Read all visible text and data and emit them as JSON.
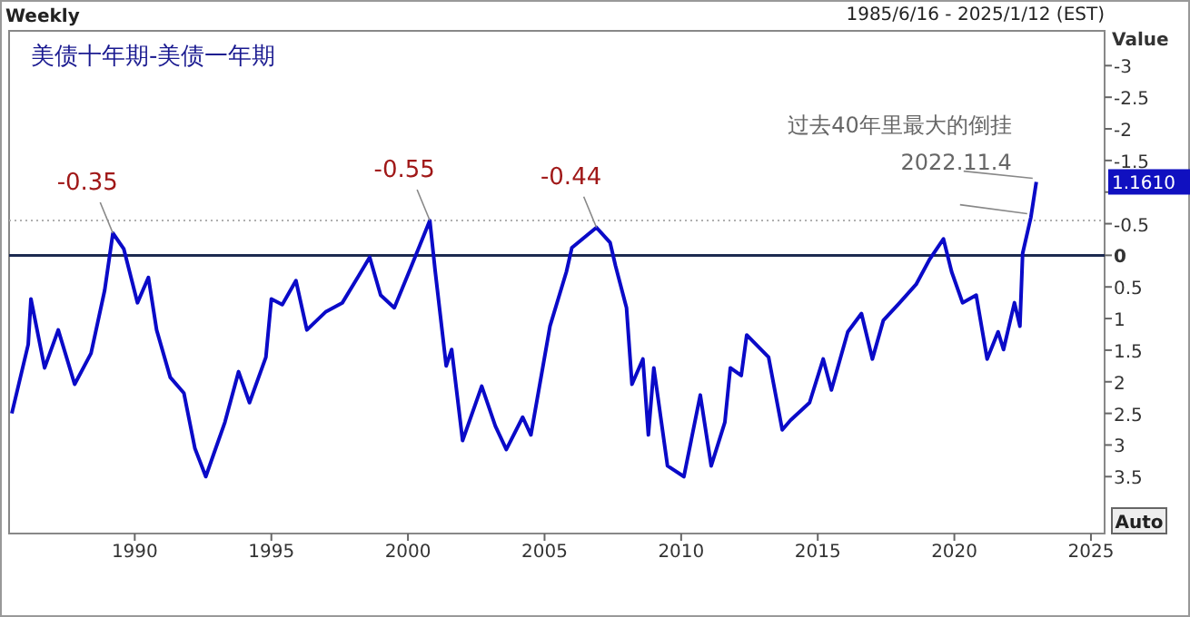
{
  "chart_data": {
    "type": "line",
    "title": "美债十年期-美债一年期",
    "ylabel": "Value",
    "x": [
      1985.5,
      1986.1,
      1986.2,
      1986.7,
      1987.2,
      1987.8,
      1988.4,
      1988.9,
      1989.2,
      1989.6,
      1990.1,
      1990.5,
      1990.8,
      1991.3,
      1991.8,
      1992.2,
      1992.6,
      1992.9,
      1993.3,
      1993.8,
      1994.2,
      1994.8,
      1995.0,
      1995.4,
      1995.9,
      1996.3,
      1997.0,
      1997.6,
      1998.2,
      1998.6,
      1999.0,
      1999.5,
      2000.1,
      2000.8,
      2001.0,
      2001.4,
      2001.6,
      2002.0,
      2002.7,
      2003.2,
      2003.6,
      2004.2,
      2004.5,
      2005.2,
      2005.8,
      2006.0,
      2006.9,
      2007.4,
      2007.6,
      2008.0,
      2008.2,
      2008.6,
      2008.8,
      2009.0,
      2009.5,
      2010.1,
      2010.7,
      2011.1,
      2011.6,
      2011.8,
      2012.2,
      2012.4,
      2013.2,
      2013.7,
      2014.0,
      2014.7,
      2015.2,
      2015.5,
      2016.1,
      2016.6,
      2017.0,
      2017.4,
      2018.0,
      2018.6,
      2019.1,
      2019.6,
      2019.9,
      2020.3,
      2020.8,
      2021.2,
      2021.6,
      2021.8,
      2022.2,
      2022.4,
      2022.5,
      2022.8,
      2023.0
    ],
    "series": [
      {
        "color": "#0a0ac8",
        "values": [
          2.5,
          1.41,
          0.69,
          1.78,
          1.18,
          2.04,
          1.55,
          0.55,
          -0.35,
          -0.1,
          0.75,
          0.35,
          1.18,
          1.93,
          2.18,
          3.05,
          3.5,
          3.13,
          2.64,
          1.84,
          2.33,
          1.61,
          0.69,
          0.78,
          0.4,
          1.18,
          0.89,
          0.75,
          0.32,
          0.03,
          0.63,
          0.83,
          0.2,
          -0.55,
          0.26,
          1.75,
          1.49,
          2.93,
          2.07,
          2.7,
          3.07,
          2.56,
          2.84,
          1.12,
          0.26,
          -0.12,
          -0.44,
          -0.2,
          0.17,
          0.83,
          2.04,
          1.64,
          2.84,
          1.78,
          3.33,
          3.5,
          2.21,
          3.33,
          2.64,
          1.78,
          1.9,
          1.26,
          1.61,
          2.76,
          2.61,
          2.33,
          1.64,
          2.13,
          1.21,
          0.92,
          1.64,
          1.03,
          0.75,
          0.46,
          0.06,
          -0.26,
          0.26,
          0.75,
          0.63,
          1.64,
          1.21,
          1.49,
          0.75,
          1.12,
          -0.03,
          -0.6,
          -1.16
        ]
      }
    ],
    "xlim": [
      1985.4,
      2025.5
    ],
    "xticks": [
      1990,
      1995,
      2000,
      2005,
      2010,
      2015,
      2020,
      2025
    ],
    "ylim": [
      4.4,
      -3.55
    ],
    "yticks": [
      -3,
      -2.5,
      -2,
      -1.5,
      {
        "value": -1,
        "label": null
      },
      -0.5,
      0,
      0.5,
      1,
      1.5,
      2,
      2.5,
      3,
      3.5
    ],
    "ref_lines": [
      {
        "axis": "y",
        "value": 0,
        "color": "#1c2a50",
        "line_style": "solid"
      },
      {
        "axis": "y",
        "value": -0.55,
        "color": "#b0b0b0",
        "line_style": "dotted"
      }
    ],
    "annotations": [
      "Weekly",
      "1985/6/16 - 2025/1/12 (EST)",
      "Auto",
      "1.1610",
      {
        "text": "-0.35",
        "x": 1989.2,
        "y": -0.35
      },
      {
        "text": "-0.55",
        "x": 2000.8,
        "y": -0.55
      },
      {
        "text": "-0.44",
        "x": 2006.9,
        "y": -0.44
      },
      "过去40年里最大的倒挂",
      {
        "text": "2022.11.4",
        "x": 2022.9,
        "y": -0.9
      }
    ],
    "grid": false,
    "marker": "none",
    "line_style": "solid"
  }
}
